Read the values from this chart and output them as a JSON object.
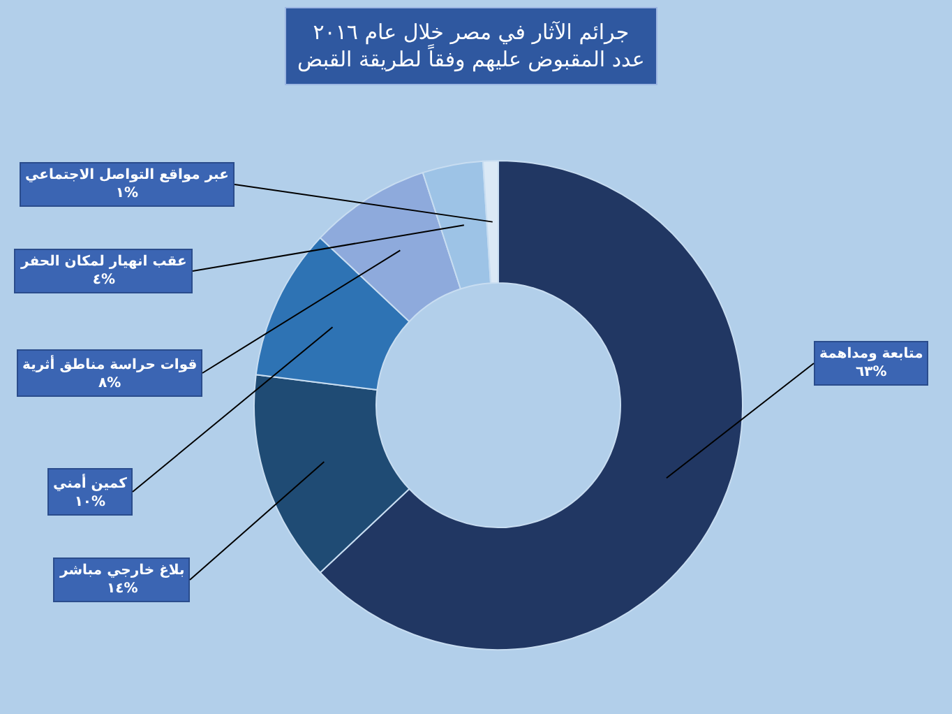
{
  "chart_data": {
    "type": "donut",
    "title": "جرائم الآثار في مصر خلال عام ٢٠١٦",
    "subtitle": "عدد المقبوض عليهم وفقاً لطريقة القبض",
    "categories": [
      "متابعة ومداهمة",
      "بلاغ خارجي مباشر",
      "كمين أمني",
      "قوات حراسة مناطق أثرية",
      "عقب انهيار لمكان الحفر",
      "عبر مواقع التواصل الاجتماعي"
    ],
    "values": [
      63,
      14,
      10,
      8,
      4,
      1
    ],
    "value_labels": [
      "٦٣%",
      "١٤%",
      "١٠%",
      "٨%",
      "٤%",
      "١%"
    ],
    "colors": [
      "#213763",
      "#1f4b74",
      "#2e73b4",
      "#8eaadc",
      "#9dc3e6",
      "#dbe9f6"
    ]
  }
}
